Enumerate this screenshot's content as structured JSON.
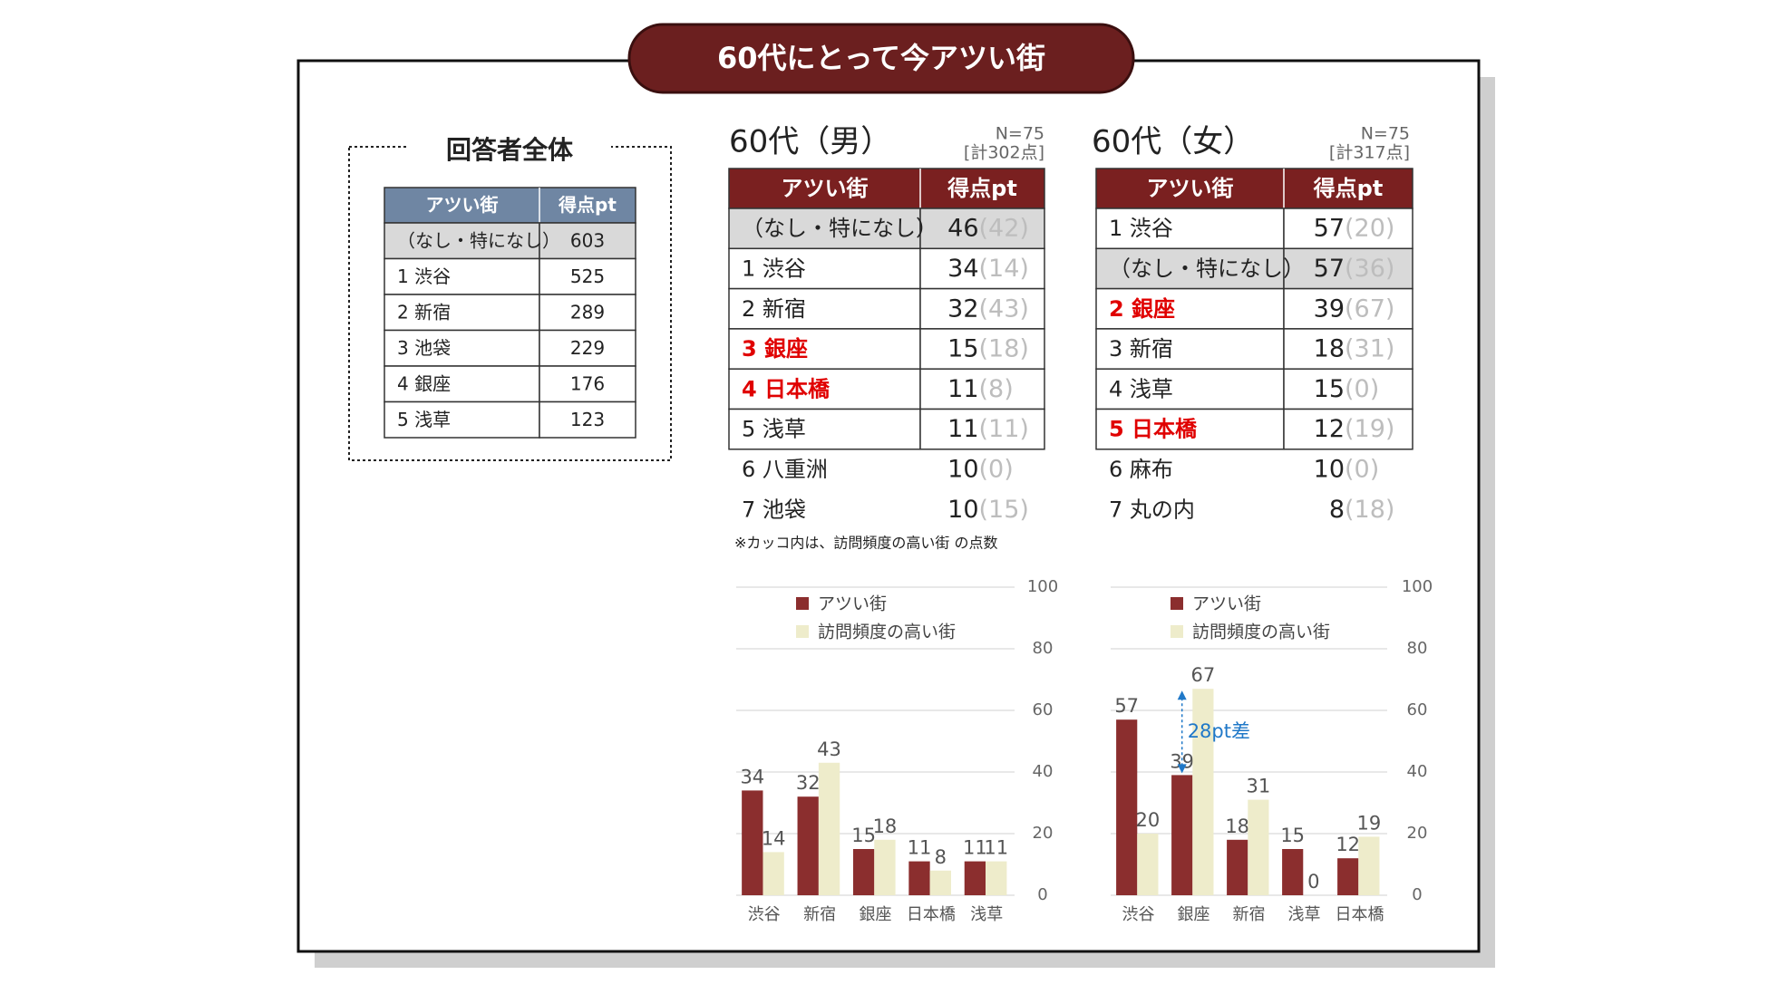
{
  "title": "60代にとって今アツい街",
  "overall": {
    "title": "回答者全体",
    "header": [
      "アツい街",
      "得点pt"
    ],
    "rows": [
      {
        "name": "（なし・特になし）",
        "score": 603,
        "fill": "#d9d9d9"
      },
      {
        "name": "1 渋谷",
        "score": 525
      },
      {
        "name": "2 新宿",
        "score": 289
      },
      {
        "name": "3 池袋",
        "score": 229
      },
      {
        "name": "4 銀座",
        "score": 176
      },
      {
        "name": "5 浅草",
        "score": 123
      }
    ]
  },
  "male": {
    "heading": "60代（男）",
    "n": "N=75",
    "total": "[計302点]",
    "header": [
      "アツい街",
      "得点pt"
    ],
    "rows": [
      {
        "name": "（なし・特になし）",
        "score": 46,
        "visit": "(42)",
        "fill": "#d9d9d9"
      },
      {
        "name": "1 渋谷",
        "score": 34,
        "visit": "(14)"
      },
      {
        "name": "2 新宿",
        "score": 32,
        "visit": "(43)"
      },
      {
        "name": "3 銀座",
        "score": 15,
        "visit": "(18)",
        "color": "#e00000"
      },
      {
        "name": "4 日本橋",
        "score": 11,
        "visit": "(8)",
        "color": "#e00000"
      },
      {
        "name": "5 浅草",
        "score": 11,
        "visit": "(11)"
      }
    ],
    "extra_rows": [
      {
        "name": "6 八重洲",
        "score": 10,
        "visit": "(0)"
      },
      {
        "name": "7 池袋",
        "score": 10,
        "visit": "(15)"
      }
    ]
  },
  "female": {
    "heading": "60代（女）",
    "n": "N=75",
    "total": "[計317点]",
    "header": [
      "アツい街",
      "得点pt"
    ],
    "rows": [
      {
        "name": "1 渋谷",
        "score": 57,
        "visit": "(20)"
      },
      {
        "name": "（なし・特になし）",
        "score": 57,
        "visit": "(36)",
        "fill": "#d9d9d9"
      },
      {
        "name": "2 銀座",
        "score": 39,
        "visit": "(67)",
        "color": "#e00000"
      },
      {
        "name": "3 新宿",
        "score": 18,
        "visit": "(31)"
      },
      {
        "name": "4 浅草",
        "score": 15,
        "visit": "(0)"
      },
      {
        "name": "5 日本橋",
        "score": 12,
        "visit": "(19)",
        "color": "#e00000"
      }
    ],
    "extra_rows": [
      {
        "name": "6 麻布",
        "score": 10,
        "visit": "(0)"
      },
      {
        "name": "7 丸の内",
        "score": 8,
        "visit": "(18)"
      }
    ]
  },
  "note": "※カッコ内は、訪問頻度の高い街 の点数",
  "chart_data": [
    {
      "type": "bar",
      "categories": [
        "渋谷",
        "新宿",
        "銀座",
        "日本橋",
        "浅草"
      ],
      "series": [
        {
          "name": "アツい街",
          "color": "#8b2e2e",
          "values": [
            34,
            32,
            15,
            11,
            11
          ]
        },
        {
          "name": "訪問頻度の高い街",
          "color": "#eeeccb",
          "values": [
            14,
            43,
            18,
            8,
            11
          ]
        }
      ],
      "ylim": [
        0,
        100
      ],
      "yticks": [
        0,
        20,
        40,
        60,
        80,
        100
      ],
      "grid": true,
      "legend": "upper left",
      "y_axis_side": "right",
      "data_labels": true
    },
    {
      "type": "bar",
      "categories": [
        "渋谷",
        "銀座",
        "新宿",
        "浅草",
        "日本橋"
      ],
      "series": [
        {
          "name": "アツい街",
          "color": "#8b2e2e",
          "values": [
            57,
            39,
            18,
            15,
            12
          ]
        },
        {
          "name": "訪問頻度の高い街",
          "color": "#eeeccb",
          "values": [
            20,
            67,
            31,
            0,
            19
          ]
        }
      ],
      "ylim": [
        0,
        100
      ],
      "yticks": [
        0,
        20,
        40,
        60,
        80,
        100
      ],
      "grid": true,
      "legend": "upper left",
      "y_axis_side": "right",
      "data_labels": true,
      "annotation": {
        "text": "28pt差",
        "category": "銀座",
        "color": "#1f78c8"
      }
    }
  ]
}
